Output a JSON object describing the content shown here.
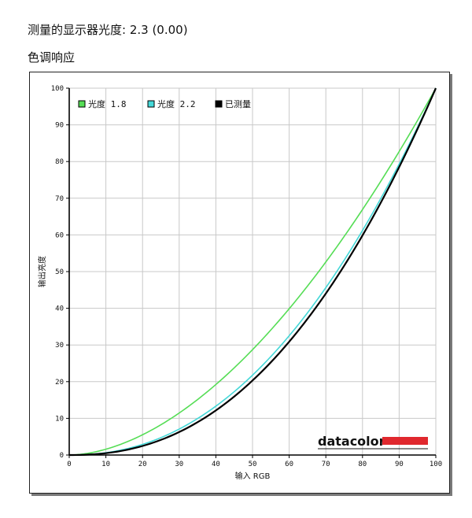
{
  "header": {
    "measured_gamma": "测量的显示器光度:  2.3 (0.00)",
    "section_title": "色调响应"
  },
  "logo": {
    "text": "datacolor",
    "bar_color": "#e0282e"
  },
  "chart_data": {
    "type": "line",
    "xlabel": "输入 RGB",
    "ylabel": "输出亮度",
    "xlim": [
      0,
      100
    ],
    "ylim": [
      0,
      100
    ],
    "xticks": [
      0,
      10,
      20,
      30,
      40,
      50,
      60,
      70,
      80,
      90,
      100
    ],
    "yticks": [
      0,
      10,
      20,
      30,
      40,
      50,
      60,
      70,
      80,
      90,
      100
    ],
    "grid": true,
    "legend_position": "top-left",
    "series": [
      {
        "name": "光度 1.8",
        "gamma": 1.8,
        "color": "#55dd55",
        "x": [
          0,
          10,
          20,
          30,
          40,
          50,
          60,
          70,
          80,
          90,
          100
        ],
        "y": [
          0,
          1.6,
          5.5,
          11.5,
          19.2,
          28.7,
          39.9,
          52.6,
          66.9,
          82.7,
          100
        ]
      },
      {
        "name": "光度 2.2",
        "gamma": 2.2,
        "color": "#44d8d8",
        "x": [
          0,
          10,
          20,
          30,
          40,
          50,
          60,
          70,
          80,
          90,
          100
        ],
        "y": [
          0,
          0.6,
          2.9,
          7.1,
          13.3,
          21.8,
          32.5,
          45.6,
          61.2,
          79.3,
          100
        ]
      },
      {
        "name": "已测量",
        "gamma": 2.3,
        "color": "#000000",
        "x": [
          0,
          10,
          20,
          30,
          40,
          50,
          60,
          70,
          80,
          90,
          100
        ],
        "y": [
          0,
          0.5,
          2.5,
          6.3,
          12.2,
          20.3,
          30.9,
          44.0,
          59.9,
          78.5,
          100
        ]
      }
    ]
  }
}
